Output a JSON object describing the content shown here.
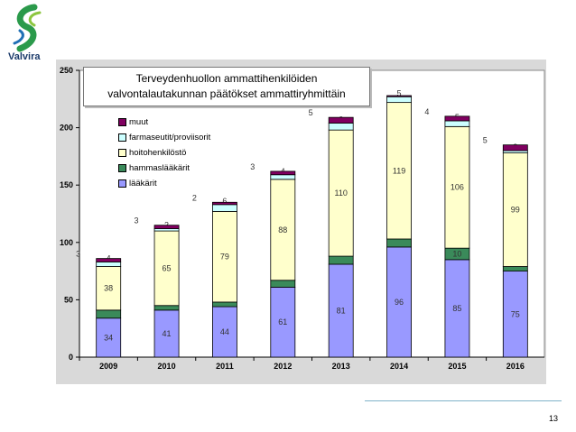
{
  "logo": {
    "text": "Valvira"
  },
  "title_box": {
    "line1": "Terveydenhuollon ammattihenkilöiden",
    "line2": "valvontalautakunnan päätökset ammattiryhmittäin"
  },
  "page_number": "13",
  "colors": {
    "lääkärit": "#9999ff",
    "hammaslääkärit": "#3a8a5a",
    "hoitohenkilöstö": "#ffffcc",
    "farmaseutit/proviisorit": "#ccffff",
    "muut": "#800060"
  },
  "chart_data": {
    "type": "bar",
    "stacked": true,
    "categories": [
      "2009",
      "2010",
      "2011",
      "2012",
      "2013",
      "2014",
      "2015",
      "2016"
    ],
    "series": [
      {
        "name": "lääkärit",
        "values": [
          34,
          41,
          44,
          61,
          81,
          96,
          85,
          75
        ]
      },
      {
        "name": "hammaslääkärit",
        "values": [
          7,
          4,
          4,
          6,
          7,
          7,
          10,
          4
        ]
      },
      {
        "name": "hoitohenkilöstö",
        "values": [
          38,
          65,
          79,
          88,
          110,
          119,
          106,
          99
        ]
      },
      {
        "name": "farmaseutit/proviisorit",
        "values": [
          4,
          2,
          6,
          4,
          6,
          5,
          5,
          2
        ]
      },
      {
        "name": "muut",
        "values": [
          3,
          3,
          2,
          3,
          5,
          1,
          4,
          5
        ]
      }
    ],
    "ylim": [
      0,
      250
    ],
    "yticks": [
      0,
      50,
      100,
      150,
      200,
      250
    ],
    "legend_order": [
      "muut",
      "farmaseutit/proviisorit",
      "hoitohenkilöstö",
      "hammaslääkärit",
      "lääkärit"
    ],
    "legend_position": "upper-left",
    "grid": false
  }
}
